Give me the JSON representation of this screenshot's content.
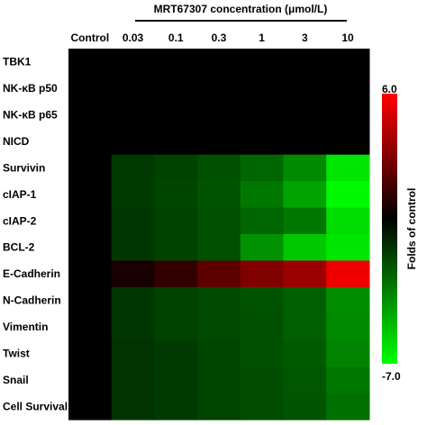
{
  "chart_data": {
    "type": "heatmap",
    "super_xlabel": "MRT67307 concentration (μmol/L)",
    "columns": [
      "Control",
      "0.03",
      "0.1",
      "0.3",
      "1",
      "3",
      "10"
    ],
    "rows": [
      "TBK1",
      "NK-κB p50",
      "NK-κB p65",
      "NICD",
      "Survivin",
      "cIAP-1",
      "cIAP-2",
      "BCL-2",
      "E-Cadherin",
      "N-Cadherin",
      "Vimentin",
      "Twist",
      "Snail",
      "Cell Survival"
    ],
    "values": [
      [
        0,
        0,
        0,
        0,
        0,
        0,
        0
      ],
      [
        0,
        0,
        0,
        0,
        0,
        0,
        0
      ],
      [
        0,
        0,
        0,
        0,
        0,
        0,
        0
      ],
      [
        0,
        0,
        0,
        0,
        0,
        0,
        0
      ],
      [
        0,
        -1.6,
        -1.8,
        -2.2,
        -2.8,
        -3.8,
        -6.3
      ],
      [
        0,
        -1.6,
        -1.9,
        -2.3,
        -3.3,
        -4.5,
        -6.8
      ],
      [
        0,
        -1.5,
        -1.8,
        -2.2,
        -2.8,
        -3.3,
        -6.0
      ],
      [
        0,
        -1.5,
        -1.8,
        -2.2,
        -4.0,
        -5.5,
        -6.3
      ],
      [
        0,
        0.6,
        1.2,
        2.2,
        3.0,
        3.7,
        5.6
      ],
      [
        0,
        -1.5,
        -1.8,
        -2.0,
        -2.3,
        -2.6,
        -3.9
      ],
      [
        0,
        -1.5,
        -1.8,
        -2.0,
        -2.2,
        -2.6,
        -3.8
      ],
      [
        0,
        -1.4,
        -1.6,
        -1.9,
        -2.2,
        -2.5,
        -3.6
      ],
      [
        0,
        -1.4,
        -1.6,
        -1.9,
        -2.1,
        -2.4,
        -3.3
      ],
      [
        0,
        -1.4,
        -1.6,
        -1.9,
        -2.1,
        -2.3,
        -3.1
      ]
    ],
    "colorbar": {
      "max_label": "6.0",
      "min_label": "-7.0",
      "vmax": 6.0,
      "vmin": -7.0,
      "label": "Folds of control"
    },
    "colors": {
      "high": "#ff0000",
      "mid": "#000000",
      "low": "#00ff00"
    }
  }
}
